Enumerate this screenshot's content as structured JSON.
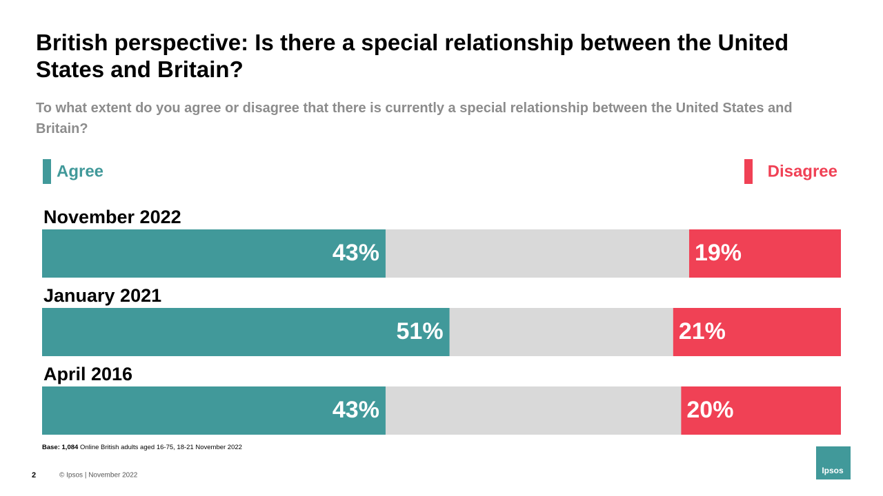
{
  "chart_data": {
    "type": "bar",
    "orientation": "horizontal",
    "stacked": "diverging",
    "title": "British perspective: Is there a special relationship between the United States and Britain?",
    "subtitle": "To what extent do you agree or disagree that there is currently a special relationship between the United States and Britain?",
    "categories": [
      "November 2022",
      "January 2021",
      "April 2016"
    ],
    "xlim": [
      0,
      100
    ],
    "series": [
      {
        "name": "Agree",
        "color": "#41999a",
        "values": [
          43,
          51,
          43
        ],
        "value_labels": [
          "43%",
          "51%",
          "43%"
        ]
      },
      {
        "name": "Disagree",
        "color": "#f04155",
        "values": [
          19,
          21,
          20
        ],
        "value_labels": [
          "19%",
          "21%",
          "20%"
        ]
      }
    ]
  },
  "footer": {
    "base_label": "Base:",
    "base_count": "1,084",
    "base_text": "Online British adults aged 16-75, 18-21 November 2022",
    "page_number": "2",
    "copyright": "© Ipsos | November 2022",
    "logo": "Ipsos"
  }
}
